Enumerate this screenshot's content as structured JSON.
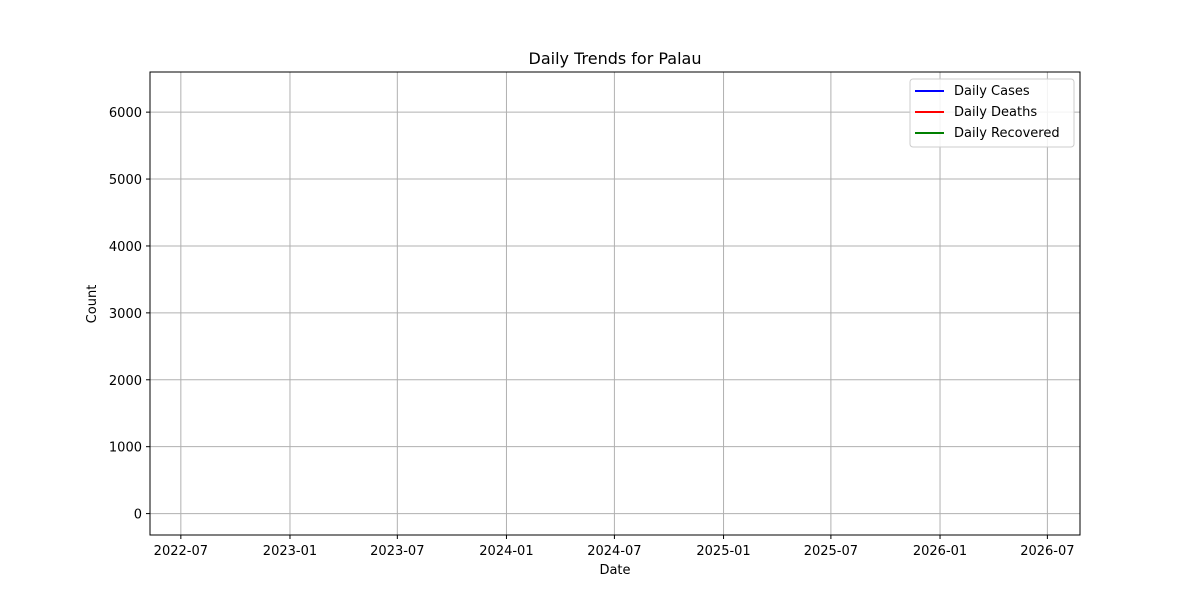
{
  "chart_data": {
    "type": "line",
    "title": "Daily Trends for Palau",
    "xlabel": "Date",
    "ylabel": "Count",
    "x_ticks": [
      "2022-07",
      "2023-01",
      "2023-07",
      "2024-01",
      "2024-07",
      "2025-01",
      "2025-07",
      "2026-01",
      "2026-07"
    ],
    "y_ticks": [
      "0",
      "1000",
      "2000",
      "3000",
      "4000",
      "5000",
      "6000"
    ],
    "xlim": [
      "2022-05-10",
      "2026-08-25"
    ],
    "ylim": [
      -320,
      6600
    ],
    "grid": true,
    "legend_position": "top-right",
    "series": [
      {
        "name": "Daily Cases",
        "color": "#0000ff",
        "points": []
      },
      {
        "name": "Daily Deaths",
        "color": "#ff0000",
        "points": []
      },
      {
        "name": "Daily Recovered",
        "color": "#008000",
        "points": []
      }
    ]
  }
}
